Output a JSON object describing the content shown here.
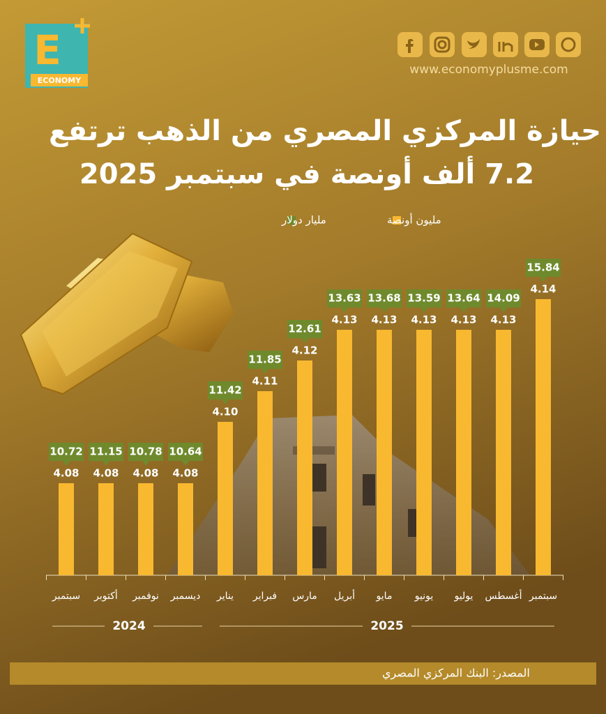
{
  "header": {
    "logo_letter": "E",
    "logo_word": "ECONOMY",
    "website": "www.economyplusme.com"
  },
  "chart_data": {
    "type": "bar",
    "title": "حيازة المركزي المصري من الذهب ترتفع",
    "subtitle": "7.2 ألف أونصة في سبتمبر 2025",
    "categories": [
      "سبتمبر",
      "أكتوبر",
      "نوفمبر",
      "ديسمبر",
      "يناير",
      "فبراير",
      "مارس",
      "أبريل",
      "مايو",
      "يونيو",
      "يوليو",
      "أغسطس",
      "سبتمبر"
    ],
    "years": [
      "2024",
      "2025"
    ],
    "ylim": [
      4.05,
      4.15
    ],
    "series": [
      {
        "name": "مليون أونصة",
        "color": "#f8b830",
        "values": [
          4.08,
          4.08,
          4.08,
          4.08,
          4.1,
          4.11,
          4.12,
          4.13,
          4.13,
          4.13,
          4.13,
          4.13,
          4.14
        ],
        "value_labels": [
          "4.08",
          "4.08",
          "4.08",
          "4.08",
          "4.10",
          "4.11",
          "4.12",
          "4.13",
          "4.13",
          "4.13",
          "4.13",
          "4.13",
          "4.14"
        ]
      },
      {
        "name": "مليار دولار",
        "color": "#6f8a2c",
        "values": [
          10.72,
          11.15,
          10.78,
          10.64,
          11.42,
          11.85,
          12.61,
          13.63,
          13.68,
          13.59,
          13.64,
          14.09,
          15.84
        ]
      }
    ],
    "source": "المصدر: البنك المركزي المصري"
  }
}
